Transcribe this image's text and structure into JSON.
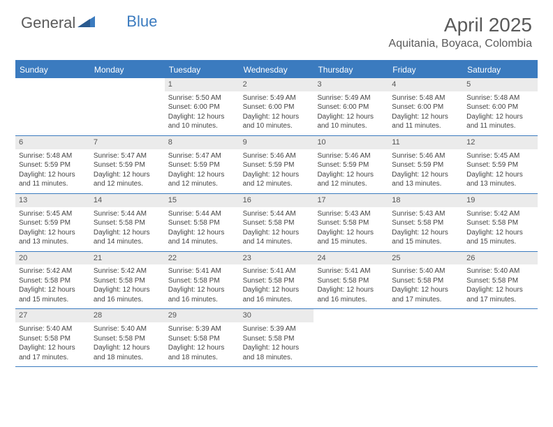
{
  "logo": {
    "text1": "General",
    "text2": "Blue"
  },
  "title": "April 2025",
  "location": "Aquitania, Boyaca, Colombia",
  "colors": {
    "brand_blue": "#3b7bbf",
    "header_text": "#5a5a5a",
    "cell_text": "#444444",
    "daynum_bg": "#ebebeb",
    "background": "#ffffff"
  },
  "typography": {
    "title_fontsize": 28,
    "location_fontsize": 16,
    "dayheader_fontsize": 12,
    "cell_fontsize": 10
  },
  "day_names": [
    "Sunday",
    "Monday",
    "Tuesday",
    "Wednesday",
    "Thursday",
    "Friday",
    "Saturday"
  ],
  "weeks": [
    [
      null,
      null,
      {
        "n": "1",
        "sr": "5:50 AM",
        "ss": "6:00 PM",
        "dl": "12 hours and 10 minutes."
      },
      {
        "n": "2",
        "sr": "5:49 AM",
        "ss": "6:00 PM",
        "dl": "12 hours and 10 minutes."
      },
      {
        "n": "3",
        "sr": "5:49 AM",
        "ss": "6:00 PM",
        "dl": "12 hours and 10 minutes."
      },
      {
        "n": "4",
        "sr": "5:48 AM",
        "ss": "6:00 PM",
        "dl": "12 hours and 11 minutes."
      },
      {
        "n": "5",
        "sr": "5:48 AM",
        "ss": "6:00 PM",
        "dl": "12 hours and 11 minutes."
      }
    ],
    [
      {
        "n": "6",
        "sr": "5:48 AM",
        "ss": "5:59 PM",
        "dl": "12 hours and 11 minutes."
      },
      {
        "n": "7",
        "sr": "5:47 AM",
        "ss": "5:59 PM",
        "dl": "12 hours and 12 minutes."
      },
      {
        "n": "8",
        "sr": "5:47 AM",
        "ss": "5:59 PM",
        "dl": "12 hours and 12 minutes."
      },
      {
        "n": "9",
        "sr": "5:46 AM",
        "ss": "5:59 PM",
        "dl": "12 hours and 12 minutes."
      },
      {
        "n": "10",
        "sr": "5:46 AM",
        "ss": "5:59 PM",
        "dl": "12 hours and 12 minutes."
      },
      {
        "n": "11",
        "sr": "5:46 AM",
        "ss": "5:59 PM",
        "dl": "12 hours and 13 minutes."
      },
      {
        "n": "12",
        "sr": "5:45 AM",
        "ss": "5:59 PM",
        "dl": "12 hours and 13 minutes."
      }
    ],
    [
      {
        "n": "13",
        "sr": "5:45 AM",
        "ss": "5:59 PM",
        "dl": "12 hours and 13 minutes."
      },
      {
        "n": "14",
        "sr": "5:44 AM",
        "ss": "5:58 PM",
        "dl": "12 hours and 14 minutes."
      },
      {
        "n": "15",
        "sr": "5:44 AM",
        "ss": "5:58 PM",
        "dl": "12 hours and 14 minutes."
      },
      {
        "n": "16",
        "sr": "5:44 AM",
        "ss": "5:58 PM",
        "dl": "12 hours and 14 minutes."
      },
      {
        "n": "17",
        "sr": "5:43 AM",
        "ss": "5:58 PM",
        "dl": "12 hours and 15 minutes."
      },
      {
        "n": "18",
        "sr": "5:43 AM",
        "ss": "5:58 PM",
        "dl": "12 hours and 15 minutes."
      },
      {
        "n": "19",
        "sr": "5:42 AM",
        "ss": "5:58 PM",
        "dl": "12 hours and 15 minutes."
      }
    ],
    [
      {
        "n": "20",
        "sr": "5:42 AM",
        "ss": "5:58 PM",
        "dl": "12 hours and 15 minutes."
      },
      {
        "n": "21",
        "sr": "5:42 AM",
        "ss": "5:58 PM",
        "dl": "12 hours and 16 minutes."
      },
      {
        "n": "22",
        "sr": "5:41 AM",
        "ss": "5:58 PM",
        "dl": "12 hours and 16 minutes."
      },
      {
        "n": "23",
        "sr": "5:41 AM",
        "ss": "5:58 PM",
        "dl": "12 hours and 16 minutes."
      },
      {
        "n": "24",
        "sr": "5:41 AM",
        "ss": "5:58 PM",
        "dl": "12 hours and 16 minutes."
      },
      {
        "n": "25",
        "sr": "5:40 AM",
        "ss": "5:58 PM",
        "dl": "12 hours and 17 minutes."
      },
      {
        "n": "26",
        "sr": "5:40 AM",
        "ss": "5:58 PM",
        "dl": "12 hours and 17 minutes."
      }
    ],
    [
      {
        "n": "27",
        "sr": "5:40 AM",
        "ss": "5:58 PM",
        "dl": "12 hours and 17 minutes."
      },
      {
        "n": "28",
        "sr": "5:40 AM",
        "ss": "5:58 PM",
        "dl": "12 hours and 18 minutes."
      },
      {
        "n": "29",
        "sr": "5:39 AM",
        "ss": "5:58 PM",
        "dl": "12 hours and 18 minutes."
      },
      {
        "n": "30",
        "sr": "5:39 AM",
        "ss": "5:58 PM",
        "dl": "12 hours and 18 minutes."
      },
      null,
      null,
      null
    ]
  ],
  "labels": {
    "sunrise": "Sunrise:",
    "sunset": "Sunset:",
    "daylight": "Daylight:"
  }
}
